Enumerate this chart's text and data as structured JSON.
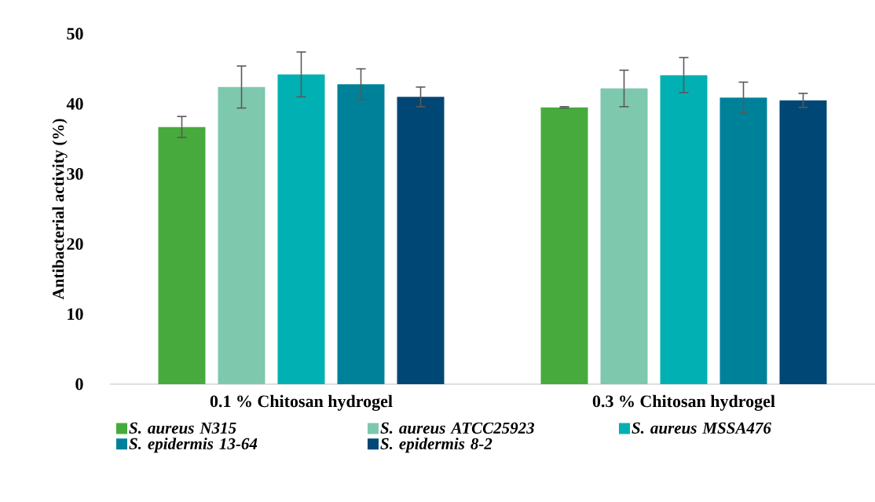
{
  "chart_data": {
    "type": "bar",
    "categories": [
      "0.1 % Chitosan hydrogel",
      "0.3 % Chitosan hydrogel"
    ],
    "ylabel": "Antibacterial activity (%)",
    "ylim": [
      0,
      50
    ],
    "yticks": [
      0,
      10,
      20,
      30,
      40,
      50
    ],
    "legend": "bottom",
    "series": [
      {
        "name": "S. aureus N315",
        "color": "#46ab3c",
        "values": [
          36.7,
          39.5
        ],
        "errors": [
          1.5,
          0.1
        ]
      },
      {
        "name": "S. aureus ATCC25923",
        "color": "#7ec8ae",
        "values": [
          42.4,
          42.2
        ],
        "errors": [
          3.0,
          2.6
        ]
      },
      {
        "name": "S. aureus MSSA476",
        "color": "#00b0b3",
        "values": [
          44.2,
          44.1
        ],
        "errors": [
          3.2,
          2.5
        ]
      },
      {
        "name": "S. epidermis 13-64",
        "color": "#00819a",
        "values": [
          42.8,
          40.9
        ],
        "errors": [
          2.2,
          2.2
        ]
      },
      {
        "name": "S. epidermis 8-2",
        "color": "#004775",
        "values": [
          41.0,
          40.5
        ],
        "errors": [
          1.4,
          1.0
        ]
      }
    ]
  }
}
